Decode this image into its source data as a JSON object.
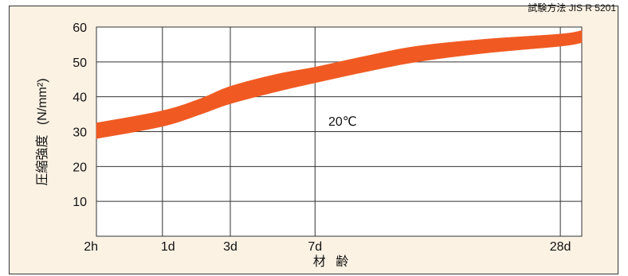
{
  "corner_note": "試験方法 JIS R 5201",
  "chart_data": {
    "type": "area",
    "title": "",
    "xlabel": "材 齢",
    "ylabel": "圧縮強度 (N/mm²)",
    "ylabel_main": "圧縮強度",
    "ylabel_unit": "(N/mm²)",
    "annotation": "20℃",
    "ylim": [
      0,
      60
    ],
    "yticks": [
      10,
      20,
      30,
      40,
      50,
      60
    ],
    "xlim_days": [
      0.083,
      30.5
    ],
    "x_scale": "sqrt",
    "xticks": [
      {
        "label": "2h",
        "days": 0.083
      },
      {
        "label": "1d",
        "days": 1
      },
      {
        "label": "3d",
        "days": 3
      },
      {
        "label": "7d",
        "days": 7
      },
      {
        "label": "28d",
        "days": 28
      }
    ],
    "grid": true,
    "series": [
      {
        "color": "#f05a22",
        "x_days": [
          0.083,
          1,
          2,
          3,
          5,
          7,
          10,
          14,
          20,
          28,
          30.5
        ],
        "upper": [
          32.5,
          36,
          39.5,
          43,
          46.5,
          48.5,
          51.5,
          54.5,
          56.5,
          58,
          59
        ],
        "lower": [
          28,
          31.5,
          35,
          38,
          41.5,
          44,
          47,
          50,
          52.5,
          54.5,
          55.5
        ]
      }
    ]
  }
}
